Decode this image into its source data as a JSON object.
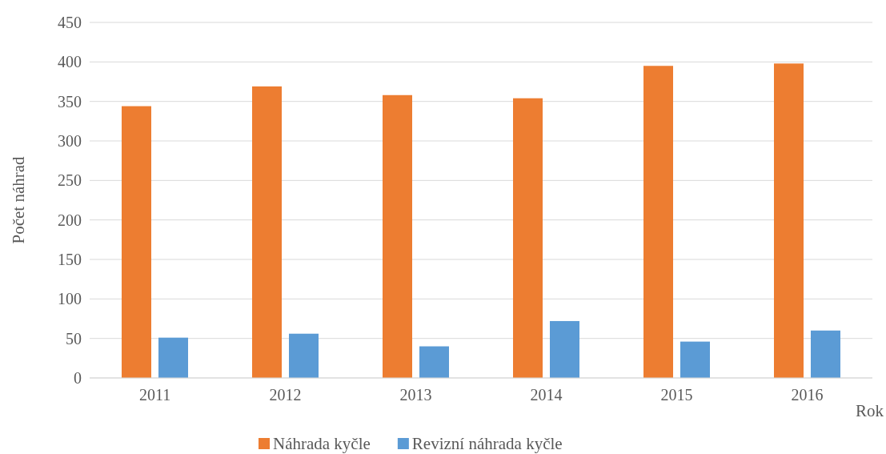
{
  "chart_data": {
    "type": "bar",
    "xlabel": "Rok",
    "ylabel": "Počet náhrad",
    "categories": [
      "2011",
      "2012",
      "2013",
      "2014",
      "2015",
      "2016"
    ],
    "series": [
      {
        "name": "Náhrada kyčle",
        "color": "#ed7d31",
        "values": [
          344,
          369,
          358,
          354,
          395,
          398
        ]
      },
      {
        "name": "Revizní náhrada kyčle",
        "color": "#5b9bd5",
        "values": [
          51,
          56,
          40,
          72,
          46,
          60
        ]
      }
    ],
    "ylim": [
      0,
      450
    ],
    "yticks": [
      0,
      50,
      100,
      150,
      200,
      250,
      300,
      350,
      400,
      450
    ],
    "grid": "y",
    "legend": "bottom"
  }
}
